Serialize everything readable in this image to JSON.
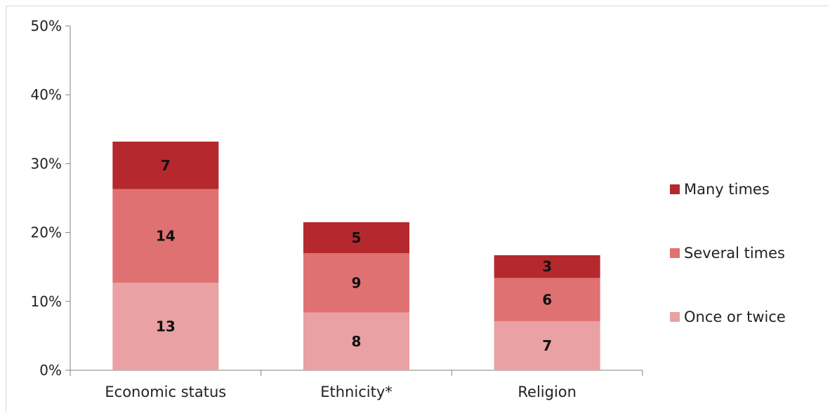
{
  "chart_data": {
    "type": "bar",
    "stacked": true,
    "categories": [
      "Economic status",
      "Ethnicity*",
      "Religion"
    ],
    "y_ticks": [
      "0%",
      "10%",
      "20%",
      "30%",
      "40%",
      "50%"
    ],
    "ylim": [
      0,
      50
    ],
    "series": [
      {
        "name": "Once or twice",
        "values": [
          12.7,
          8.4,
          7.1
        ],
        "labels": [
          "13",
          "8",
          "7"
        ],
        "color": "#e9a1a3"
      },
      {
        "name": "Several times",
        "values": [
          13.6,
          8.6,
          6.3
        ],
        "labels": [
          "14",
          "9",
          "6"
        ],
        "color": "#e07172"
      },
      {
        "name": "Many times",
        "values": [
          6.9,
          4.5,
          3.3
        ],
        "labels": [
          "7",
          "5",
          "3"
        ],
        "color": "#b5282e"
      }
    ],
    "legend_order": [
      "Many times",
      "Several times",
      "Once or twice"
    ],
    "legend_position": "right",
    "grid": false
  }
}
